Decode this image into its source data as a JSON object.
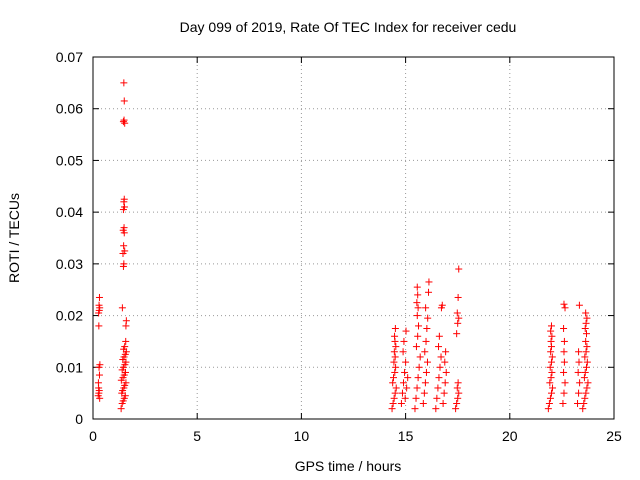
{
  "chart_data": {
    "type": "scatter",
    "title": "Day 099 of 2019, Rate Of TEC Index for receiver cedu",
    "xlabel": "GPS time / hours",
    "ylabel": "ROTI / TECUs",
    "xlim": [
      0,
      25
    ],
    "ylim": [
      0,
      0.07
    ],
    "grid": true,
    "marker": "+",
    "marker_color": "#ff0000",
    "x_ticks": [
      0,
      5,
      10,
      15,
      20,
      25
    ],
    "x_tick_labels": [
      "0",
      "5",
      "10",
      "15",
      "20",
      "25"
    ],
    "y_ticks": [
      0,
      0.01,
      0.02,
      0.03,
      0.04,
      0.05,
      0.06,
      0.07
    ],
    "y_tick_labels": [
      "0",
      "0.01",
      "0.02",
      "0.03",
      "0.04",
      "0.05",
      "0.06",
      "0.07"
    ],
    "series": [
      {
        "name": "ROTI",
        "points": [
          [
            0.25,
            0.0045
          ],
          [
            0.28,
            0.005
          ],
          [
            0.3,
            0.0055
          ],
          [
            0.27,
            0.006
          ],
          [
            0.32,
            0.004
          ],
          [
            0.26,
            0.007
          ],
          [
            0.31,
            0.0085
          ],
          [
            0.29,
            0.01
          ],
          [
            0.33,
            0.0105
          ],
          [
            0.28,
            0.018
          ],
          [
            0.27,
            0.0205
          ],
          [
            0.3,
            0.021
          ],
          [
            0.32,
            0.0215
          ],
          [
            0.29,
            0.022
          ],
          [
            0.31,
            0.0235
          ],
          [
            1.35,
            0.002
          ],
          [
            1.4,
            0.003
          ],
          [
            1.45,
            0.0035
          ],
          [
            1.5,
            0.004
          ],
          [
            1.55,
            0.0045
          ],
          [
            1.38,
            0.005
          ],
          [
            1.42,
            0.0055
          ],
          [
            1.48,
            0.006
          ],
          [
            1.52,
            0.0065
          ],
          [
            1.58,
            0.007
          ],
          [
            1.36,
            0.0075
          ],
          [
            1.44,
            0.008
          ],
          [
            1.5,
            0.0085
          ],
          [
            1.56,
            0.009
          ],
          [
            1.4,
            0.0095
          ],
          [
            1.46,
            0.01
          ],
          [
            1.53,
            0.0105
          ],
          [
            1.58,
            0.011
          ],
          [
            1.43,
            0.0115
          ],
          [
            1.49,
            0.012
          ],
          [
            1.55,
            0.0125
          ],
          [
            1.6,
            0.013
          ],
          [
            1.47,
            0.0135
          ],
          [
            1.52,
            0.014
          ],
          [
            1.57,
            0.015
          ],
          [
            1.58,
            0.018
          ],
          [
            1.6,
            0.019
          ],
          [
            1.41,
            0.0215
          ],
          [
            1.46,
            0.0295
          ],
          [
            1.48,
            0.03
          ],
          [
            1.44,
            0.032
          ],
          [
            1.52,
            0.0325
          ],
          [
            1.47,
            0.0335
          ],
          [
            1.5,
            0.036
          ],
          [
            1.45,
            0.0365
          ],
          [
            1.49,
            0.037
          ],
          [
            1.46,
            0.0405
          ],
          [
            1.51,
            0.041
          ],
          [
            1.48,
            0.042
          ],
          [
            1.5,
            0.0425
          ],
          [
            1.46,
            0.0575
          ],
          [
            1.49,
            0.0578
          ],
          [
            1.52,
            0.0572
          ],
          [
            1.5,
            0.0615
          ],
          [
            1.48,
            0.065
          ],
          [
            14.35,
            0.002
          ],
          [
            14.4,
            0.003
          ],
          [
            14.45,
            0.004
          ],
          [
            14.5,
            0.005
          ],
          [
            14.55,
            0.006
          ],
          [
            14.38,
            0.007
          ],
          [
            14.42,
            0.008
          ],
          [
            14.48,
            0.009
          ],
          [
            14.52,
            0.01
          ],
          [
            14.44,
            0.011
          ],
          [
            14.5,
            0.012
          ],
          [
            14.46,
            0.013
          ],
          [
            14.53,
            0.014
          ],
          [
            14.49,
            0.015
          ],
          [
            14.47,
            0.016
          ],
          [
            14.51,
            0.0175
          ],
          [
            14.8,
            0.003
          ],
          [
            14.85,
            0.005
          ],
          [
            14.9,
            0.007
          ],
          [
            14.95,
            0.009
          ],
          [
            15.0,
            0.011
          ],
          [
            14.88,
            0.013
          ],
          [
            14.92,
            0.015
          ],
          [
            15.02,
            0.017
          ],
          [
            14.98,
            0.004
          ],
          [
            15.05,
            0.006
          ],
          [
            15.1,
            0.008
          ],
          [
            15.45,
            0.002
          ],
          [
            15.5,
            0.004
          ],
          [
            15.55,
            0.006
          ],
          [
            15.6,
            0.008
          ],
          [
            15.65,
            0.01
          ],
          [
            15.7,
            0.012
          ],
          [
            15.52,
            0.014
          ],
          [
            15.58,
            0.016
          ],
          [
            15.62,
            0.018
          ],
          [
            15.56,
            0.02
          ],
          [
            15.6,
            0.0215
          ],
          [
            15.54,
            0.0225
          ],
          [
            15.58,
            0.024
          ],
          [
            15.56,
            0.0255
          ],
          [
            15.85,
            0.003
          ],
          [
            15.9,
            0.005
          ],
          [
            15.95,
            0.007
          ],
          [
            16.0,
            0.009
          ],
          [
            16.05,
            0.011
          ],
          [
            15.92,
            0.013
          ],
          [
            15.98,
            0.015
          ],
          [
            16.02,
            0.0175
          ],
          [
            16.06,
            0.0195
          ],
          [
            15.96,
            0.0215
          ],
          [
            16.1,
            0.0245
          ],
          [
            16.12,
            0.0265
          ],
          [
            16.45,
            0.002
          ],
          [
            16.5,
            0.004
          ],
          [
            16.55,
            0.006
          ],
          [
            16.6,
            0.008
          ],
          [
            16.65,
            0.01
          ],
          [
            16.7,
            0.012
          ],
          [
            16.58,
            0.014
          ],
          [
            16.62,
            0.016
          ],
          [
            16.72,
            0.0215
          ],
          [
            16.76,
            0.022
          ],
          [
            16.8,
            0.003
          ],
          [
            16.85,
            0.005
          ],
          [
            16.9,
            0.007
          ],
          [
            16.95,
            0.009
          ],
          [
            16.88,
            0.011
          ],
          [
            16.92,
            0.013
          ],
          [
            17.4,
            0.002
          ],
          [
            17.45,
            0.003
          ],
          [
            17.5,
            0.004
          ],
          [
            17.55,
            0.005
          ],
          [
            17.48,
            0.006
          ],
          [
            17.52,
            0.007
          ],
          [
            17.45,
            0.0165
          ],
          [
            17.5,
            0.0185
          ],
          [
            17.55,
            0.0195
          ],
          [
            17.48,
            0.0205
          ],
          [
            17.52,
            0.0235
          ],
          [
            17.55,
            0.029
          ],
          [
            21.85,
            0.002
          ],
          [
            21.9,
            0.003
          ],
          [
            21.95,
            0.004
          ],
          [
            22.0,
            0.005
          ],
          [
            22.05,
            0.006
          ],
          [
            21.92,
            0.007
          ],
          [
            21.98,
            0.008
          ],
          [
            22.02,
            0.009
          ],
          [
            21.94,
            0.01
          ],
          [
            22.0,
            0.011
          ],
          [
            22.04,
            0.012
          ],
          [
            21.96,
            0.013
          ],
          [
            22.0,
            0.014
          ],
          [
            21.98,
            0.015
          ],
          [
            22.02,
            0.016
          ],
          [
            21.96,
            0.017
          ],
          [
            22.0,
            0.018
          ],
          [
            22.55,
            0.003
          ],
          [
            22.6,
            0.005
          ],
          [
            22.65,
            0.007
          ],
          [
            22.58,
            0.009
          ],
          [
            22.62,
            0.011
          ],
          [
            22.6,
            0.013
          ],
          [
            22.62,
            0.015
          ],
          [
            22.58,
            0.0175
          ],
          [
            22.65,
            0.0215
          ],
          [
            22.6,
            0.0222
          ],
          [
            23.25,
            0.003
          ],
          [
            23.3,
            0.005
          ],
          [
            23.35,
            0.007
          ],
          [
            23.28,
            0.009
          ],
          [
            23.32,
            0.011
          ],
          [
            23.3,
            0.013
          ],
          [
            23.34,
            0.022
          ],
          [
            23.5,
            0.002
          ],
          [
            23.55,
            0.003
          ],
          [
            23.6,
            0.004
          ],
          [
            23.65,
            0.005
          ],
          [
            23.7,
            0.006
          ],
          [
            23.75,
            0.007
          ],
          [
            23.58,
            0.008
          ],
          [
            23.62,
            0.009
          ],
          [
            23.68,
            0.01
          ],
          [
            23.72,
            0.011
          ],
          [
            23.6,
            0.012
          ],
          [
            23.66,
            0.013
          ],
          [
            23.7,
            0.014
          ],
          [
            23.64,
            0.015
          ],
          [
            23.68,
            0.0165
          ],
          [
            23.62,
            0.0175
          ],
          [
            23.66,
            0.0185
          ],
          [
            23.7,
            0.0195
          ],
          [
            23.64,
            0.0205
          ]
        ]
      }
    ]
  }
}
